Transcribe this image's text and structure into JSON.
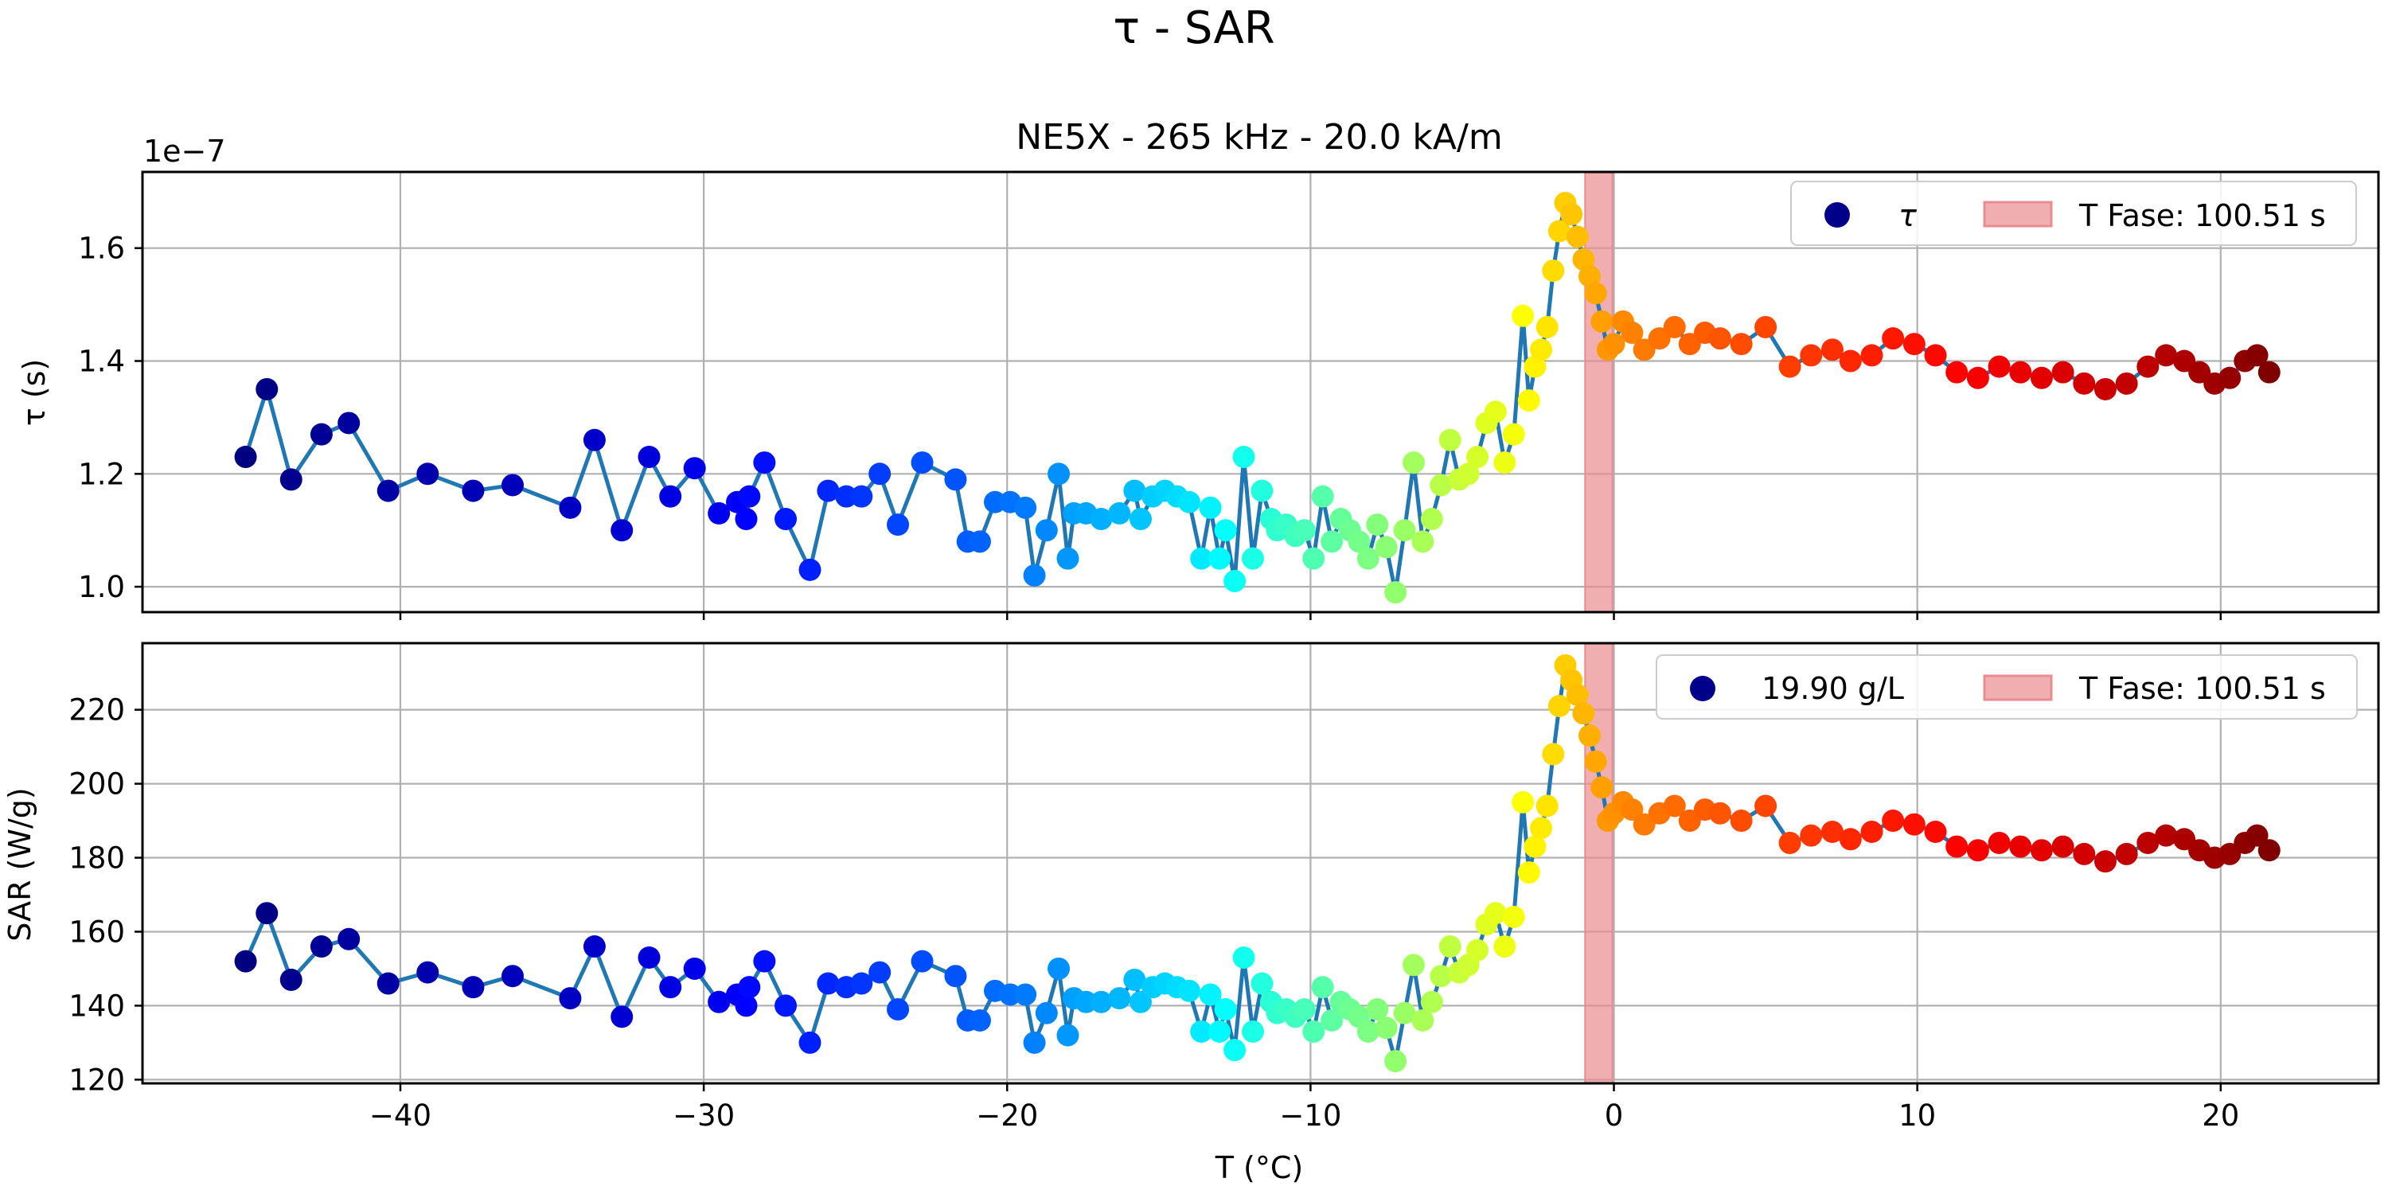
{
  "figure": {
    "title": "τ - SAR"
  },
  "chart_data": [
    {
      "type": "scatter",
      "title": "NE5X - 265 kHz - 20.0 kA/m",
      "xlabel": "",
      "ylabel": "τ (s)",
      "offset_label": "1e−7",
      "xlim": [
        -48.5,
        25.2
      ],
      "ylim": [
        0.955,
        1.735
      ],
      "yticks": [
        1.0,
        1.2,
        1.4,
        1.6
      ],
      "ytick_labels": [
        "1.0",
        "1.2",
        "1.4",
        "1.6"
      ],
      "xticks": [
        -40,
        -30,
        -20,
        -10,
        0,
        10,
        20
      ],
      "grid": true,
      "legend_position": "top-right",
      "legend": [
        {
          "label": "τ",
          "kind": "marker",
          "color": "#00008b"
        },
        {
          "label": "T Fase: 100.51 s",
          "kind": "patch",
          "color": "#e98c8f"
        }
      ],
      "shaded_span": {
        "x_from": -0.95,
        "x_to": -0.05,
        "color": "#e98c8f"
      },
      "line_color": "#1f77b4",
      "colormap": "jet",
      "series": [
        {
          "x": [
            -45.1,
            -44.4,
            -43.6,
            -42.6,
            -41.7,
            -40.4,
            -39.1,
            -37.6,
            -36.3,
            -34.4,
            -33.6,
            -32.7,
            -31.8,
            -31.1,
            -30.3,
            -29.5,
            -28.9,
            -28.6,
            -28.5,
            -28.0,
            -27.3,
            -26.5,
            -25.9,
            -25.3,
            -24.8,
            -24.2,
            -23.6,
            -22.8,
            -21.7,
            -21.3,
            -20.9,
            -20.4,
            -19.9,
            -19.4,
            -19.1,
            -18.7,
            -18.3,
            -18.0,
            -17.8,
            -17.4,
            -16.9,
            -16.3,
            -15.8,
            -15.6,
            -15.2,
            -14.8,
            -14.4,
            -14.0,
            -13.6,
            -13.3,
            -13.0,
            -12.8,
            -12.5,
            -12.2,
            -11.9,
            -11.6,
            -11.3,
            -11.1,
            -10.8,
            -10.5,
            -10.2,
            -9.9,
            -9.6,
            -9.3,
            -9.0,
            -8.7,
            -8.4,
            -8.1,
            -7.8,
            -7.5,
            -7.2,
            -6.9,
            -6.6,
            -6.3,
            -6.0,
            -5.7,
            -5.4,
            -5.1,
            -4.8,
            -4.5,
            -4.2,
            -3.9,
            -3.6,
            -3.3,
            -3.0,
            -2.8,
            -2.6,
            -2.4,
            -2.2,
            -2.0,
            -1.8,
            -1.6,
            -1.4,
            -1.2,
            -1.0,
            -0.8,
            -0.6,
            -0.4,
            -0.2,
            0.0,
            0.3,
            0.6,
            1.0,
            1.5,
            2.0,
            2.5,
            3.0,
            3.5,
            4.2,
            5.0,
            5.8,
            6.5,
            7.2,
            7.8,
            8.5,
            9.2,
            9.9,
            10.6,
            11.3,
            12.0,
            12.7,
            13.4,
            14.1,
            14.8,
            15.5,
            16.2,
            16.9,
            17.6,
            18.2,
            18.8,
            19.3,
            19.8,
            20.3,
            20.8,
            21.2,
            21.6
          ],
          "y": [
            1.23,
            1.35,
            1.19,
            1.27,
            1.29,
            1.17,
            1.2,
            1.17,
            1.18,
            1.14,
            1.26,
            1.1,
            1.23,
            1.16,
            1.21,
            1.13,
            1.15,
            1.12,
            1.16,
            1.22,
            1.12,
            1.03,
            1.17,
            1.16,
            1.16,
            1.2,
            1.11,
            1.22,
            1.19,
            1.08,
            1.08,
            1.15,
            1.15,
            1.14,
            1.02,
            1.1,
            1.2,
            1.05,
            1.13,
            1.13,
            1.12,
            1.13,
            1.17,
            1.12,
            1.16,
            1.17,
            1.16,
            1.15,
            1.05,
            1.14,
            1.05,
            1.1,
            1.01,
            1.23,
            1.05,
            1.17,
            1.12,
            1.1,
            1.11,
            1.09,
            1.1,
            1.05,
            1.16,
            1.08,
            1.12,
            1.1,
            1.08,
            1.05,
            1.11,
            1.07,
            0.99,
            1.1,
            1.22,
            1.08,
            1.12,
            1.18,
            1.26,
            1.19,
            1.2,
            1.23,
            1.29,
            1.31,
            1.22,
            1.27,
            1.48,
            1.33,
            1.39,
            1.42,
            1.46,
            1.56,
            1.63,
            1.68,
            1.66,
            1.62,
            1.58,
            1.55,
            1.52,
            1.47,
            1.42,
            1.43,
            1.47,
            1.45,
            1.42,
            1.44,
            1.46,
            1.43,
            1.45,
            1.44,
            1.43,
            1.46,
            1.39,
            1.41,
            1.42,
            1.4,
            1.41,
            1.44,
            1.43,
            1.41,
            1.38,
            1.37,
            1.39,
            1.38,
            1.37,
            1.38,
            1.36,
            1.35,
            1.36,
            1.39,
            1.41,
            1.4,
            1.38,
            1.36,
            1.37,
            1.4,
            1.41,
            1.38
          ]
        }
      ]
    },
    {
      "type": "scatter",
      "title": "",
      "xlabel": "T (°C)",
      "ylabel": "SAR (W/g)",
      "xlim": [
        -48.5,
        25.2
      ],
      "ylim": [
        119,
        238
      ],
      "yticks": [
        120,
        140,
        160,
        180,
        200,
        220
      ],
      "ytick_labels": [
        "120",
        "140",
        "160",
        "180",
        "200",
        "220"
      ],
      "xticks": [
        -40,
        -30,
        -20,
        -10,
        0,
        10,
        20
      ],
      "xtick_labels": [
        "−40",
        "−30",
        "−20",
        "−10",
        "0",
        "10",
        "20"
      ],
      "grid": true,
      "legend_position": "top-right",
      "legend": [
        {
          "label": "19.90 g/L",
          "kind": "marker",
          "color": "#00008b"
        },
        {
          "label": "T Fase: 100.51 s",
          "kind": "patch",
          "color": "#e98c8f"
        }
      ],
      "shaded_span": {
        "x_from": -0.95,
        "x_to": -0.05,
        "color": "#e98c8f"
      },
      "line_color": "#1f77b4",
      "colormap": "jet",
      "series": [
        {
          "x": [
            -45.1,
            -44.4,
            -43.6,
            -42.6,
            -41.7,
            -40.4,
            -39.1,
            -37.6,
            -36.3,
            -34.4,
            -33.6,
            -32.7,
            -31.8,
            -31.1,
            -30.3,
            -29.5,
            -28.9,
            -28.6,
            -28.5,
            -28.0,
            -27.3,
            -26.5,
            -25.9,
            -25.3,
            -24.8,
            -24.2,
            -23.6,
            -22.8,
            -21.7,
            -21.3,
            -20.9,
            -20.4,
            -19.9,
            -19.4,
            -19.1,
            -18.7,
            -18.3,
            -18.0,
            -17.8,
            -17.4,
            -16.9,
            -16.3,
            -15.8,
            -15.6,
            -15.2,
            -14.8,
            -14.4,
            -14.0,
            -13.6,
            -13.3,
            -13.0,
            -12.8,
            -12.5,
            -12.2,
            -11.9,
            -11.6,
            -11.3,
            -11.1,
            -10.8,
            -10.5,
            -10.2,
            -9.9,
            -9.6,
            -9.3,
            -9.0,
            -8.7,
            -8.4,
            -8.1,
            -7.8,
            -7.5,
            -7.2,
            -6.9,
            -6.6,
            -6.3,
            -6.0,
            -5.7,
            -5.4,
            -5.1,
            -4.8,
            -4.5,
            -4.2,
            -3.9,
            -3.6,
            -3.3,
            -3.0,
            -2.8,
            -2.6,
            -2.4,
            -2.2,
            -2.0,
            -1.8,
            -1.6,
            -1.4,
            -1.2,
            -1.0,
            -0.8,
            -0.6,
            -0.4,
            -0.2,
            0.0,
            0.3,
            0.6,
            1.0,
            1.5,
            2.0,
            2.5,
            3.0,
            3.5,
            4.2,
            5.0,
            5.8,
            6.5,
            7.2,
            7.8,
            8.5,
            9.2,
            9.9,
            10.6,
            11.3,
            12.0,
            12.7,
            13.4,
            14.1,
            14.8,
            15.5,
            16.2,
            16.9,
            17.6,
            18.2,
            18.8,
            19.3,
            19.8,
            20.3,
            20.8,
            21.2,
            21.6
          ],
          "y": [
            152,
            165,
            147,
            156,
            158,
            146,
            149,
            145,
            148,
            142,
            156,
            137,
            153,
            145,
            150,
            141,
            143,
            140,
            145,
            152,
            140,
            130,
            146,
            145,
            146,
            149,
            139,
            152,
            148,
            136,
            136,
            144,
            143,
            143,
            130,
            138,
            150,
            132,
            142,
            141,
            141,
            142,
            147,
            141,
            145,
            146,
            145,
            144,
            133,
            143,
            133,
            139,
            128,
            153,
            133,
            146,
            141,
            138,
            139,
            137,
            139,
            133,
            145,
            136,
            141,
            139,
            137,
            133,
            139,
            134,
            125,
            138,
            151,
            136,
            141,
            148,
            156,
            149,
            151,
            155,
            162,
            165,
            156,
            164,
            195,
            176,
            183,
            188,
            194,
            208,
            221,
            232,
            228,
            224,
            219,
            213,
            206,
            199,
            190,
            192,
            195,
            193,
            189,
            192,
            194,
            190,
            193,
            192,
            190,
            194,
            184,
            186,
            187,
            185,
            187,
            190,
            189,
            187,
            183,
            182,
            184,
            183,
            182,
            183,
            181,
            179,
            181,
            184,
            186,
            185,
            182,
            180,
            181,
            184,
            186,
            182
          ]
        }
      ]
    }
  ]
}
